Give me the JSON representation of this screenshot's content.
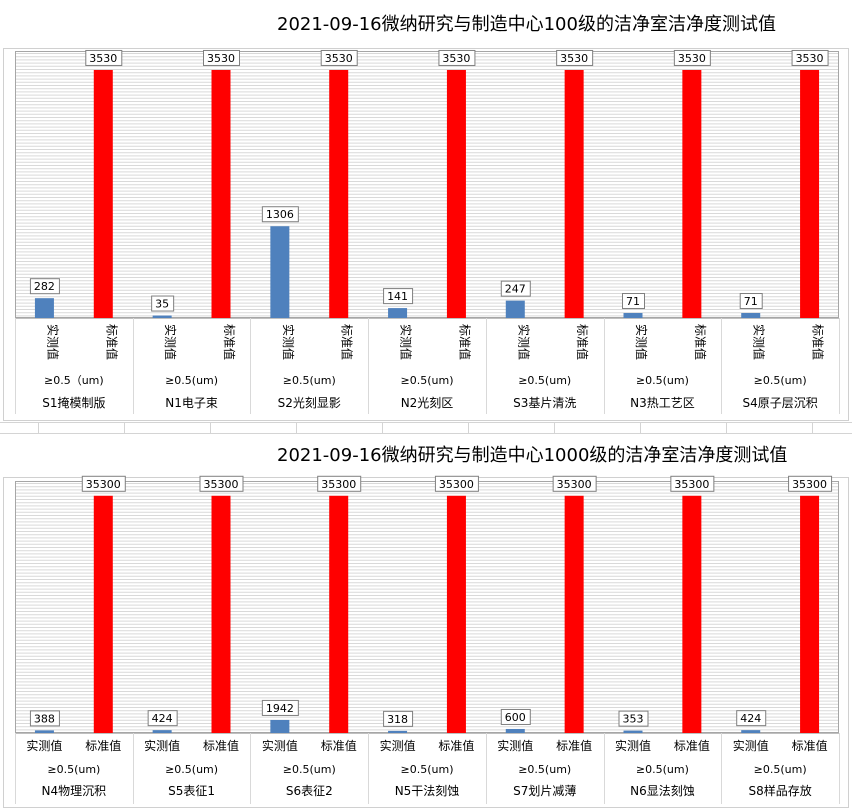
{
  "chart_data": [
    {
      "type": "bar",
      "title": "2021-09-16微纳研究与制造中心100级的洁净室洁净度测试值",
      "categories": [
        "S1掩模制版",
        "N1电子束",
        "S2光刻显影",
        "N2光刻区",
        "S3基片清洗",
        "N3热工艺区",
        "S4原子层沉积"
      ],
      "group_labels": [
        "≥0.5（um)",
        "≥0.5(um)",
        "≥0.5(um)",
        "≥0.5(um)",
        "≥0.5(um)",
        "≥0.5(um)",
        "≥0.5(um)"
      ],
      "series": [
        {
          "name": "实测值",
          "values": [
            282,
            35,
            1306,
            141,
            247,
            71,
            71
          ]
        },
        {
          "name": "标准值",
          "values": [
            3530,
            3530,
            3530,
            3530,
            3530,
            3530,
            3530
          ]
        }
      ],
      "series_label_orientation": "vertical",
      "ylim": [
        0,
        3800
      ],
      "grid": true,
      "legend": "none",
      "colors": {
        "measured": "#4f81bd",
        "standard": "#ff0000",
        "grid": "#d9d9d9",
        "plot_border": "#a6a6a6"
      }
    },
    {
      "type": "bar",
      "title": "2021-09-16微纳研究与制造中心1000级的洁净室洁净度测试值",
      "categories": [
        "N4物理沉积",
        "S5表征1",
        "S6表征2",
        "N5干法刻蚀",
        "S7划片减薄",
        "N6显法刻蚀",
        "S8样品存放"
      ],
      "group_labels": [
        "≥0.5(um)",
        "≥0.5(um)",
        "≥0.5(um)",
        "≥0.5(um)",
        "≥0.5(um)",
        "≥0.5(um)",
        "≥0.5(um)"
      ],
      "series": [
        {
          "name": "实测值",
          "values": [
            388,
            424,
            1942,
            318,
            600,
            353,
            424
          ]
        },
        {
          "name": "标准值",
          "values": [
            35300,
            35300,
            35300,
            35300,
            35300,
            35300,
            35300
          ]
        }
      ],
      "series_label_orientation": "horizontal",
      "ylim": [
        0,
        37500
      ],
      "grid": true,
      "legend": "none",
      "colors": {
        "measured": "#4f81bd",
        "standard": "#ff0000",
        "grid": "#d9d9d9",
        "plot_border": "#a6a6a6"
      }
    }
  ]
}
